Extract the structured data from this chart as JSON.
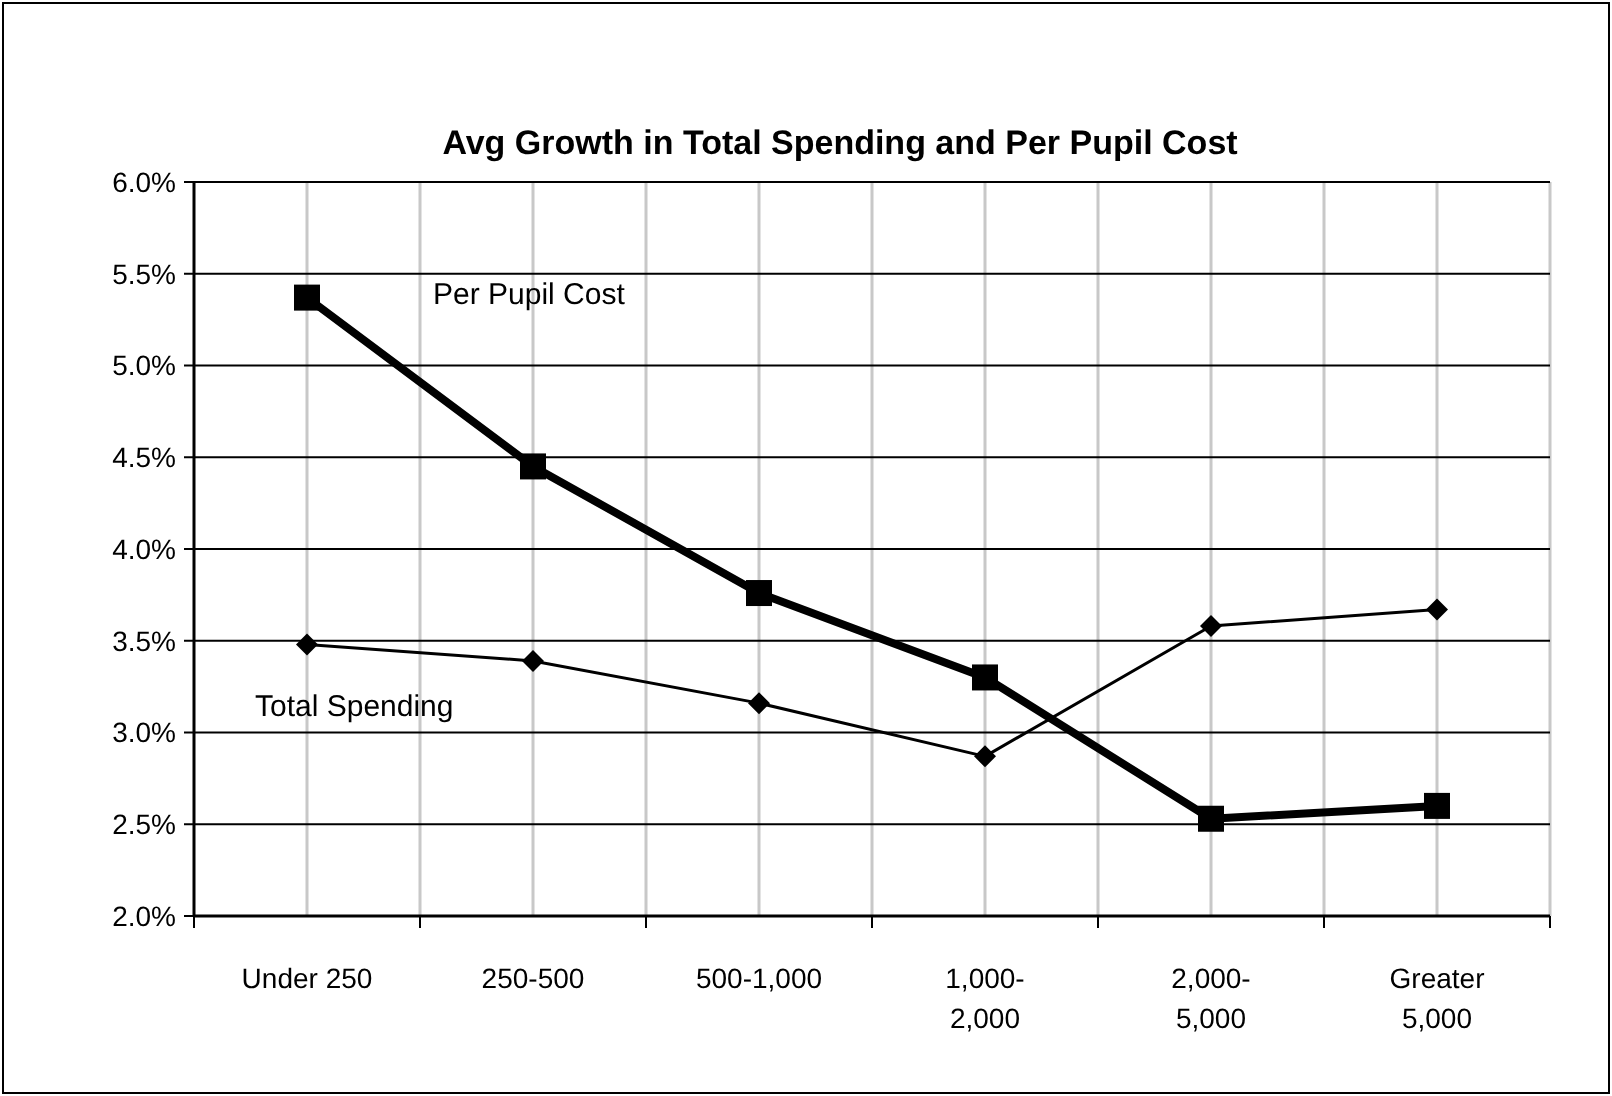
{
  "chart_data": {
    "type": "line",
    "title": "Avg Growth in Total Spending and Per Pupil Cost",
    "categories": [
      "Under 250",
      "250-500",
      "500-1,000",
      "1,000-2,000",
      "2,000-5,000",
      "Greater 5,000"
    ],
    "series": [
      {
        "name": "Per Pupil Cost",
        "color": "#000000",
        "marker": "square",
        "values": [
          5.37,
          4.45,
          3.76,
          3.3,
          2.53,
          2.6
        ]
      },
      {
        "name": "Total Spending",
        "color": "#000000",
        "marker": "diamond",
        "values": [
          3.48,
          3.39,
          3.16,
          2.87,
          3.58,
          3.67
        ]
      }
    ],
    "ylim": [
      2.0,
      6.0
    ],
    "yticks": [
      {
        "value": 2.0,
        "label": "2.0%"
      },
      {
        "value": 2.5,
        "label": "2.5%"
      },
      {
        "value": 3.0,
        "label": "3.0%"
      },
      {
        "value": 3.5,
        "label": "3.5%"
      },
      {
        "value": 4.0,
        "label": "4.0%"
      },
      {
        "value": 4.5,
        "label": "4.5%"
      },
      {
        "value": 5.0,
        "label": "5.0%"
      },
      {
        "value": 5.5,
        "label": "5.5%"
      },
      {
        "value": 6.0,
        "label": "6.0%"
      }
    ],
    "grid": true,
    "legend": false,
    "line_style": "solid"
  }
}
